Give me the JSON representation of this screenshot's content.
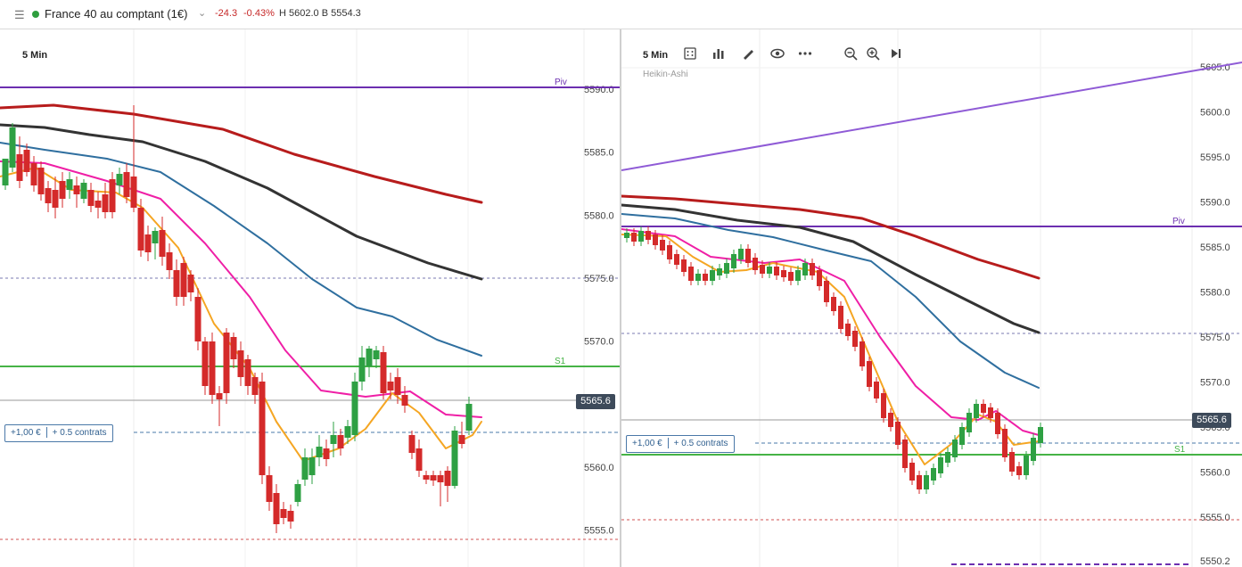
{
  "header": {
    "instrument": "France 40 au comptant (1€)",
    "change": "-24.3",
    "change_pct": "-0.43%",
    "high_low": "H 5602.0 B 5554.3",
    "status_color": "#2e9e3e",
    "change_color": "#c62828"
  },
  "left_chart": {
    "timeframe": "5 Min",
    "pivot_label": "Piv",
    "s1_label": "S1",
    "current_price": "5565.6",
    "position": {
      "amount": "+1,00 €",
      "contracts": "+ 0.5 contrats"
    },
    "y_ticks": [
      "5590.0",
      "5585.0",
      "5580.0",
      "5575.0",
      "5570.0",
      "5565.0",
      "5560.0",
      "5555.0"
    ]
  },
  "right_chart": {
    "timeframe": "5 Min",
    "chart_type_label": "Heikin-Ashi",
    "pivot_label": "Piv",
    "s1_label": "S1",
    "current_price": "5565.6",
    "position": {
      "amount": "+1,00 €",
      "contracts": "+ 0.5 contrats"
    },
    "y_ticks": [
      "5605.0",
      "5600.0",
      "5595.0",
      "5590.0",
      "5585.0",
      "5580.0",
      "5575.0",
      "5570.0",
      "5565.0",
      "5560.0",
      "5555.0",
      "5550.2"
    ],
    "toolbar": [
      "settings-icon",
      "chart-type-icon",
      "draw-icon",
      "eye-icon",
      "more-icon",
      "zoom-out-icon",
      "zoom-in-icon",
      "jump-to-end-icon"
    ]
  },
  "colors": {
    "bull": "#2ea043",
    "bear": "#d42a2a",
    "ma_red": "#b71c1c",
    "ma_black": "#333333",
    "ma_blue": "#2f6f9f",
    "ma_pink": "#ef1fa6",
    "ma_orange": "#f5a623",
    "pivot": "#6c2fb0",
    "s1": "#46b346",
    "trendline": "#8f5bd6"
  }
}
